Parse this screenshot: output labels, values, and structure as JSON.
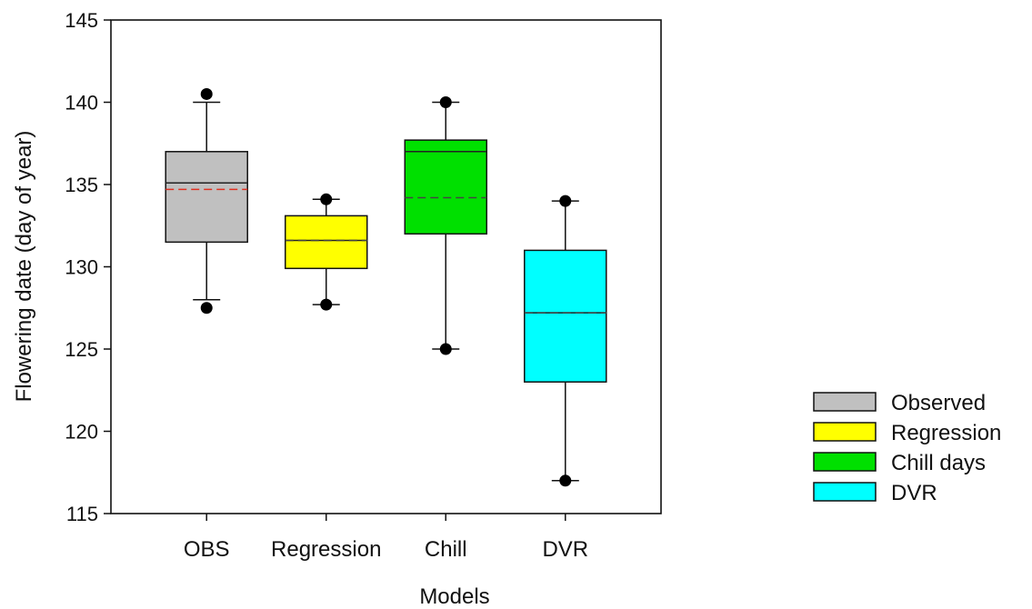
{
  "chart_data": {
    "type": "box",
    "title": "",
    "xlabel": "Models",
    "ylabel": "Flowering date (day of year)",
    "ylim": [
      115,
      145
    ],
    "yticks": [
      115,
      120,
      125,
      130,
      135,
      140,
      145
    ],
    "ytick_labels": [
      "115",
      "120",
      "125",
      "130",
      "135",
      "140",
      "145"
    ],
    "grid": false,
    "legend_position": "bottom-right, outside plot",
    "categories": [
      "OBS",
      "Regression",
      "Chill",
      "DVR"
    ],
    "series": [
      {
        "name": "Observed",
        "category": "OBS",
        "color": "#c0c0c0",
        "whisker_low": 128.0,
        "q1": 131.5,
        "median": 135.1,
        "mean": 134.7,
        "q3": 137.0,
        "whisker_high": 140.0,
        "outliers": [
          127.5,
          140.5
        ]
      },
      {
        "name": "Regression",
        "category": "Regression",
        "color": "#ffff00",
        "whisker_low": 127.7,
        "q1": 129.9,
        "median": 131.6,
        "mean": 131.6,
        "q3": 133.1,
        "whisker_high": 134.1,
        "outliers": [
          127.7,
          134.1
        ]
      },
      {
        "name": "Chill days",
        "category": "Chill",
        "color": "#00e000",
        "whisker_low": 125.0,
        "q1": 132.0,
        "median": 137.0,
        "mean": 134.2,
        "q3": 137.7,
        "whisker_high": 140.0,
        "outliers": [
          125.0,
          140.0
        ]
      },
      {
        "name": "DVR",
        "category": "DVR",
        "color": "#00ffff",
        "whisker_low": 117.0,
        "q1": 123.0,
        "median": 127.2,
        "mean": 127.2,
        "q3": 131.0,
        "whisker_high": 134.0,
        "outliers": [
          117.0,
          134.0
        ]
      }
    ],
    "mean_line_color_obs": "#e03020",
    "mean_line_color_default": "#444444"
  }
}
